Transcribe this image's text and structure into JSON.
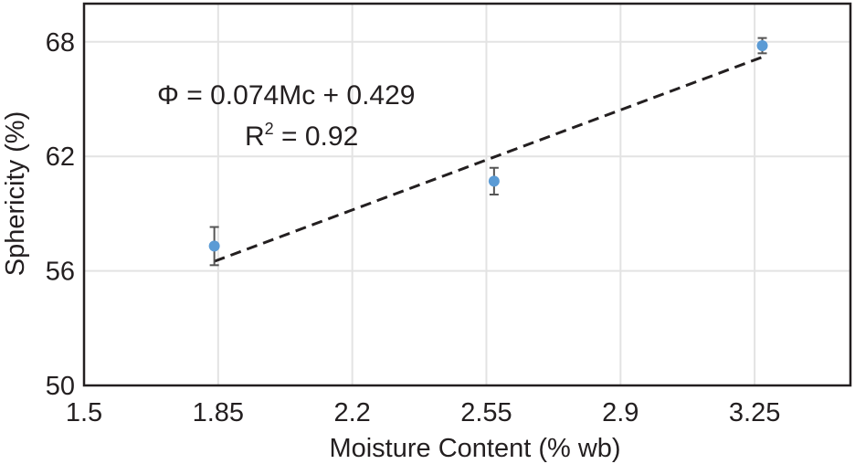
{
  "chart_data": {
    "type": "scatter",
    "xlabel": "Moisture Content (% wb)",
    "ylabel": "Sphericity (%)",
    "xlim": [
      1.5,
      3.5
    ],
    "ylim": [
      50,
      70
    ],
    "x_ticks": [
      "1.5",
      "1.85",
      "2.2",
      "2.55",
      "2.9",
      "3.25"
    ],
    "y_ticks": [
      "50",
      "56",
      "62",
      "68"
    ],
    "grid": true,
    "points": [
      {
        "x": 1.84,
        "y": 57.3,
        "err": 1.0
      },
      {
        "x": 2.57,
        "y": 60.7,
        "err": 0.7
      },
      {
        "x": 3.27,
        "y": 67.8,
        "err": 0.4
      }
    ],
    "trendline": {
      "style": "dashed",
      "x": [
        1.84,
        3.27
      ],
      "y": [
        56.5,
        67.2
      ]
    },
    "annotation": {
      "equation": "Φ = 0.074Mc + 0.429",
      "r2_base": "R",
      "r2_sup": "2",
      "r2_value": " = 0.92"
    },
    "colors": {
      "point": "#5b9bd5",
      "errorbar": "#555555",
      "trendline": "#231f20",
      "grid": "#e3e3e3",
      "frame": "#231f20"
    }
  }
}
